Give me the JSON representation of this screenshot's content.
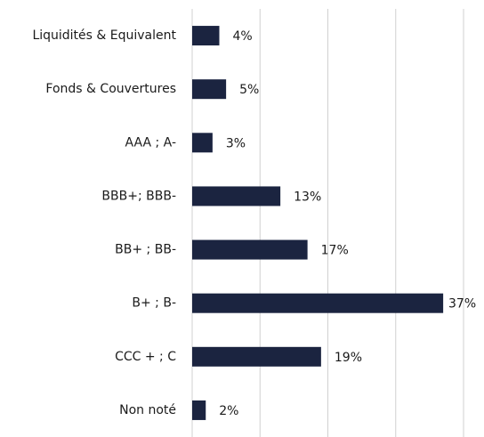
{
  "chart_data": {
    "type": "bar",
    "orientation": "horizontal",
    "categories": [
      "Liquidités & Equivalent",
      "Fonds & Couvertures",
      "AAA ; A-",
      "BBB+; BBB-",
      "BB+ ; BB-",
      "B+ ; B-",
      "CCC + ; C",
      "Non noté"
    ],
    "values": [
      4,
      5,
      3,
      13,
      17,
      37,
      19,
      2
    ],
    "value_labels": [
      "4%",
      "5%",
      "3%",
      "13%",
      "17%",
      "37%",
      "19%",
      "2%"
    ],
    "color": "#1b2440",
    "xlim": [
      0,
      40
    ],
    "xticks": [
      0,
      10,
      20,
      30,
      40
    ],
    "grid": true
  }
}
